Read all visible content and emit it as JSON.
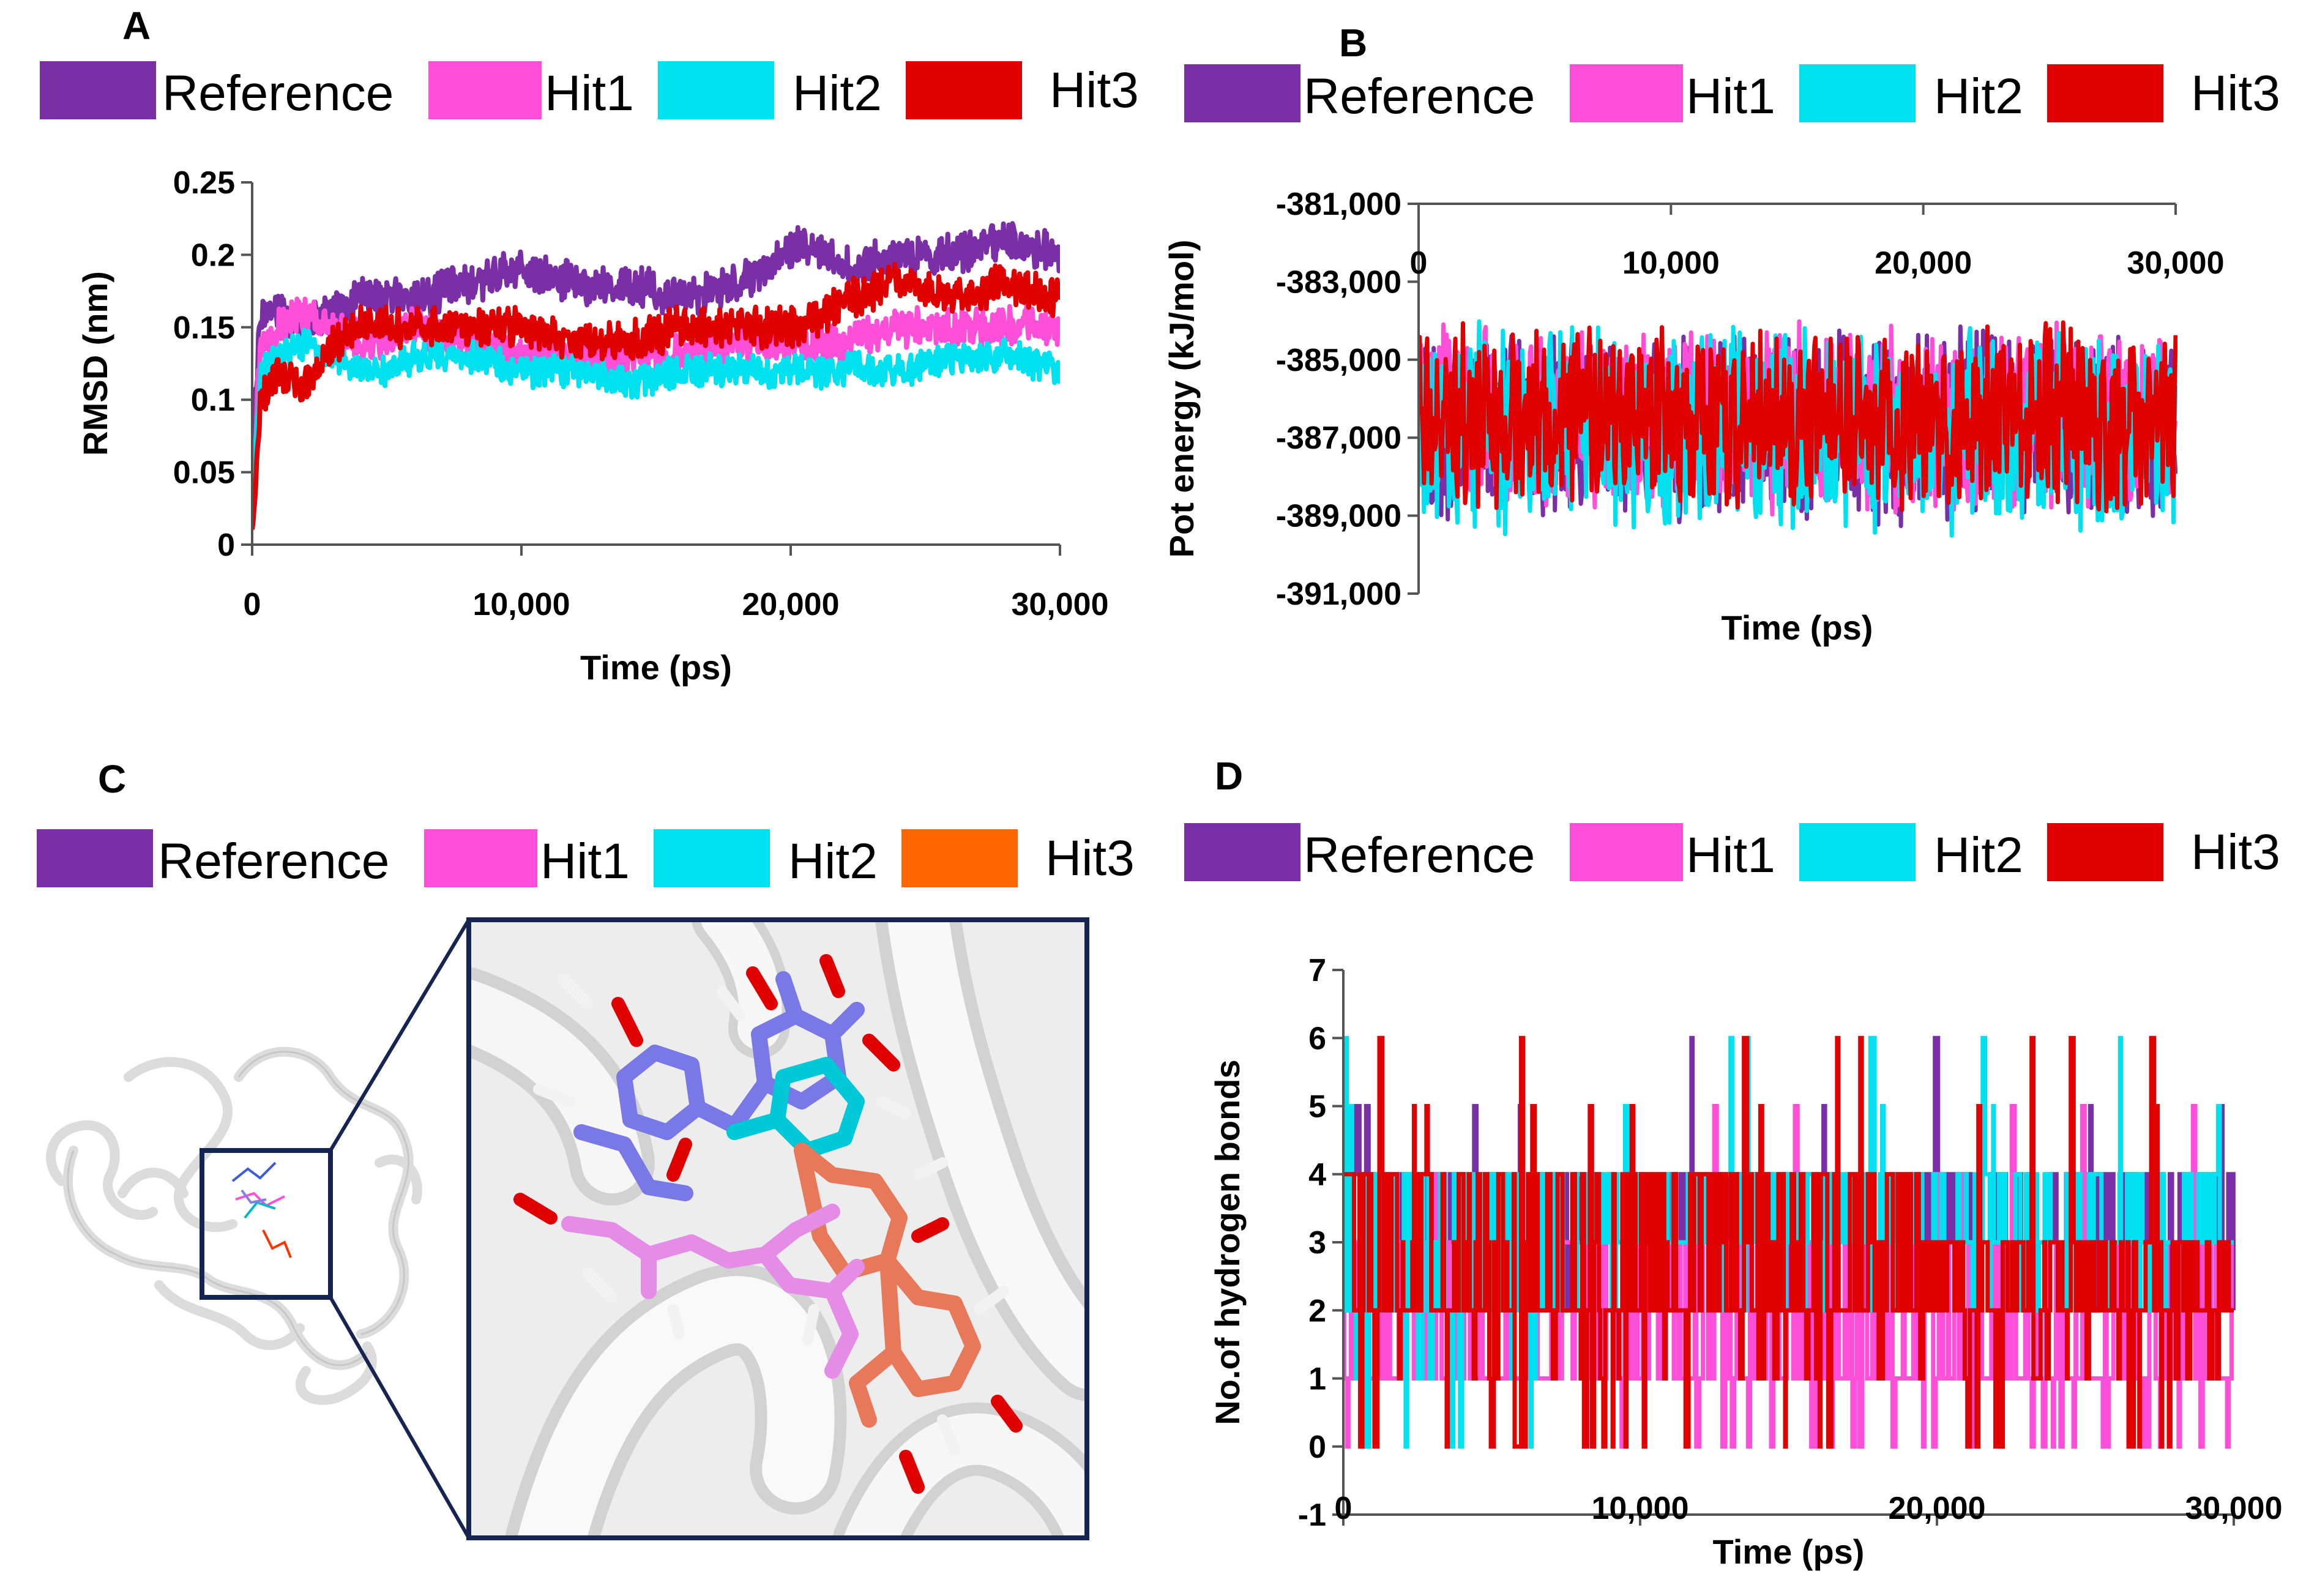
{
  "panels": {
    "A": {
      "label": "A"
    },
    "B": {
      "label": "B"
    },
    "C": {
      "label": "C"
    },
    "D": {
      "label": "D"
    }
  },
  "legends": {
    "A": [
      {
        "name": "Reference",
        "color": "#7B2FA6"
      },
      {
        "name": "Hit1",
        "color": "#FF4FD8"
      },
      {
        "name": "Hit2",
        "color": "#00E1F0"
      },
      {
        "name": "Hit3",
        "color": "#E00000"
      }
    ],
    "B": [
      {
        "name": "Reference",
        "color": "#7B2FA6"
      },
      {
        "name": "Hit1",
        "color": "#FF4FD8"
      },
      {
        "name": "Hit2",
        "color": "#00E1F0"
      },
      {
        "name": "Hit3",
        "color": "#E00000"
      }
    ],
    "C": [
      {
        "name": "Reference",
        "color": "#7B2FA6"
      },
      {
        "name": "Hit1",
        "color": "#FF4FD8"
      },
      {
        "name": "Hit2",
        "color": "#00E1F0"
      },
      {
        "name": "Hit3",
        "color": "#FF6600"
      }
    ],
    "D": [
      {
        "name": "Reference",
        "color": "#7B2FA6"
      },
      {
        "name": "Hit1",
        "color": "#FF4FD8"
      },
      {
        "name": "Hit2",
        "color": "#00E1F0"
      },
      {
        "name": "Hit3",
        "color": "#E00000"
      }
    ]
  },
  "chart_data": [
    {
      "panel": "A",
      "type": "line",
      "title": "",
      "xlabel": "Time (ps)",
      "ylabel": "RMSD (nm)",
      "xlim": [
        0,
        30000
      ],
      "ylim": [
        0,
        0.25
      ],
      "xticks": [
        0,
        10000,
        20000,
        30000
      ],
      "xtick_labels": [
        "0",
        "10,000",
        "20,000",
        "30,000"
      ],
      "yticks": [
        0,
        0.05,
        0.1,
        0.15,
        0.2,
        0.25
      ],
      "ytick_labels": [
        "0",
        "0.05",
        "0.1",
        "0.15",
        "0.2",
        "0.25"
      ],
      "x": [
        0,
        300,
        1000,
        2000,
        3000,
        4000,
        5000,
        6000,
        8000,
        10000,
        12000,
        14000,
        16000,
        18000,
        20000,
        20500,
        22000,
        24000,
        26000,
        28000,
        30000
      ],
      "series": [
        {
          "name": "Reference",
          "color": "#7B2FA6",
          "noise": 0.012,
          "values": [
            0.05,
            0.16,
            0.16,
            0.15,
            0.16,
            0.17,
            0.17,
            0.17,
            0.18,
            0.19,
            0.18,
            0.18,
            0.17,
            0.18,
            0.2,
            0.21,
            0.19,
            0.2,
            0.2,
            0.21,
            0.2
          ]
        },
        {
          "name": "Hit1",
          "color": "#FF4FD8",
          "noise": 0.012,
          "values": [
            0.03,
            0.13,
            0.15,
            0.16,
            0.15,
            0.14,
            0.14,
            0.15,
            0.14,
            0.13,
            0.13,
            0.13,
            0.13,
            0.14,
            0.14,
            0.14,
            0.14,
            0.15,
            0.15,
            0.15,
            0.15
          ]
        },
        {
          "name": "Hit2",
          "color": "#00E1F0",
          "noise": 0.01,
          "values": [
            0.02,
            0.12,
            0.13,
            0.14,
            0.13,
            0.12,
            0.12,
            0.13,
            0.13,
            0.12,
            0.12,
            0.11,
            0.12,
            0.12,
            0.12,
            0.12,
            0.12,
            0.12,
            0.13,
            0.13,
            0.12
          ]
        },
        {
          "name": "Hit3",
          "color": "#E00000",
          "noise": 0.012,
          "values": [
            0.0,
            0.1,
            0.12,
            0.11,
            0.14,
            0.15,
            0.15,
            0.15,
            0.15,
            0.15,
            0.14,
            0.14,
            0.15,
            0.15,
            0.15,
            0.15,
            0.17,
            0.18,
            0.17,
            0.18,
            0.17
          ]
        }
      ]
    },
    {
      "panel": "B",
      "type": "line",
      "title": "",
      "xlabel": "Time (ps)",
      "ylabel": "Pot energy (kJ/mol)",
      "xlim": [
        0,
        30000
      ],
      "ylim": [
        -391000,
        -381000
      ],
      "x_axis_position": "top",
      "xticks": [
        0,
        10000,
        20000,
        30000
      ],
      "xtick_labels": [
        "0",
        "10,000",
        "20,000",
        "30,000"
      ],
      "yticks": [
        -381000,
        -383000,
        -385000,
        -387000,
        -389000,
        -391000
      ],
      "ytick_labels": [
        "-381,000",
        "-383,000",
        "-385,000",
        "-387,000",
        "-389,000",
        "-391,000"
      ],
      "x": [
        0,
        30000
      ],
      "series": [
        {
          "name": "Reference",
          "color": "#7B2FA6",
          "noise": 2100,
          "values": [
            -386700,
            -386700
          ]
        },
        {
          "name": "Hit1",
          "color": "#FF4FD8",
          "noise": 2000,
          "values": [
            -386500,
            -386500
          ]
        },
        {
          "name": "Hit2",
          "color": "#00E1F0",
          "noise": 2200,
          "values": [
            -386800,
            -386800
          ]
        },
        {
          "name": "Hit3",
          "color": "#E00000",
          "noise": 2000,
          "values": [
            -386500,
            -386500
          ]
        }
      ]
    },
    {
      "panel": "D",
      "type": "line",
      "title": "",
      "xlabel": "Time (ps)",
      "ylabel": "No.of hydrogen bonds",
      "xlim": [
        0,
        30000
      ],
      "ylim": [
        -1,
        7
      ],
      "xticks": [
        0,
        10000,
        20000,
        30000
      ],
      "xtick_labels": [
        "0",
        "10,000",
        "20,000",
        "30,000"
      ],
      "yticks": [
        -1,
        0,
        1,
        2,
        3,
        4,
        5,
        6,
        7
      ],
      "ytick_labels": [
        "-1",
        "0",
        "1",
        "2",
        "3",
        "4",
        "5",
        "6",
        "7"
      ],
      "series": [
        {
          "name": "Reference",
          "color": "#7B2FA6",
          "step": 1,
          "range": [
            0,
            6
          ],
          "segments": [
            {
              "x0": 0,
              "x1": 30000,
              "base": 3,
              "low": 2,
              "high": 4,
              "spikes": [
                6,
                5
              ]
            }
          ]
        },
        {
          "name": "Hit1",
          "color": "#FF4FD8",
          "step": 1,
          "range": [
            0,
            5
          ],
          "segments": [
            {
              "x0": 0,
              "x1": 30000,
              "base": 1,
              "low": 0,
              "high": 3,
              "spikes": [
                5,
                4
              ]
            }
          ]
        },
        {
          "name": "Hit2",
          "color": "#00E1F0",
          "step": 1,
          "range": [
            0,
            6
          ],
          "segments": [
            {
              "x0": 0,
              "x1": 8000,
              "base": 2,
              "low": 0,
              "high": 4,
              "spikes": [
                6,
                5
              ]
            },
            {
              "x0": 8000,
              "x1": 30000,
              "base": 3,
              "low": 2,
              "high": 4,
              "spikes": [
                6,
                5
              ]
            }
          ]
        },
        {
          "name": "Hit3",
          "color": "#E00000",
          "step": 1,
          "range": [
            0,
            6
          ],
          "segments": [
            {
              "x0": 0,
              "x1": 19500,
              "base": 2,
              "low": 0,
              "high": 4,
              "spikes": [
                6,
                5
              ]
            },
            {
              "x0": 19500,
              "x1": 30000,
              "base": 2,
              "low": 0,
              "high": 3,
              "spikes": [
                5,
                6
              ]
            }
          ]
        }
      ]
    }
  ]
}
